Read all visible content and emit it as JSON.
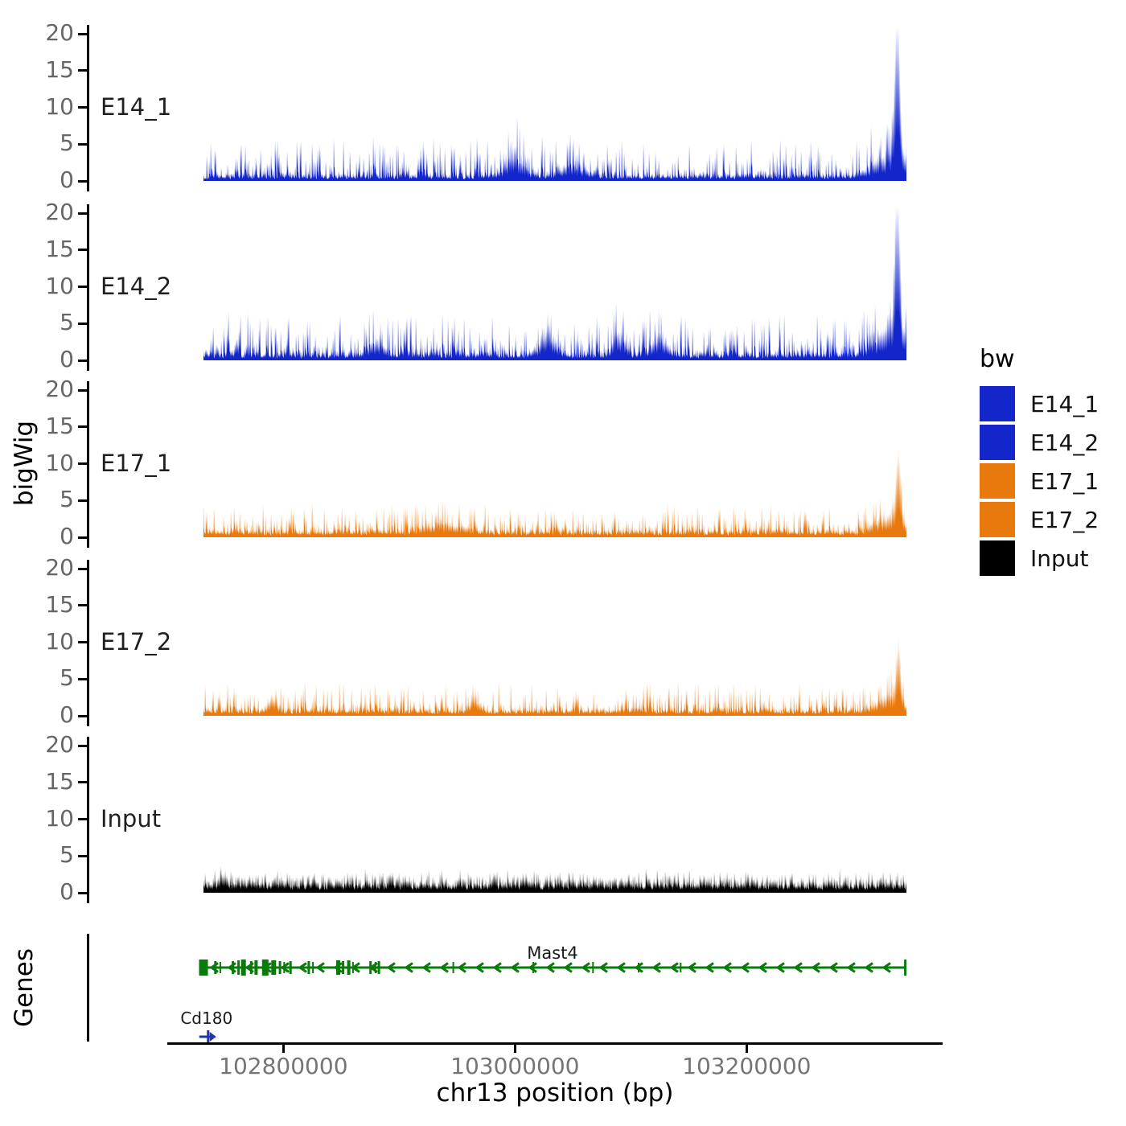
{
  "chart_data": {
    "type": "area",
    "title": "",
    "xlabel": "chr13 position (bp)",
    "ylabel": "bigWig",
    "x_domain_bp": [
      102731000,
      103338000
    ],
    "x_ticks_bp": [
      102800000,
      103000000,
      103200000
    ],
    "x_tick_labels": [
      "102800000",
      "103000000",
      "103200000"
    ],
    "y_tick_values": [
      0,
      5,
      10,
      15,
      20
    ],
    "y_tick_labels": [
      "0",
      "5",
      "10",
      "15",
      "20"
    ],
    "ylim": [
      0,
      20
    ],
    "grid": false,
    "legend_position": "right",
    "tracks": [
      {
        "name": "E14_1",
        "color": "#1326CC",
        "noise": {
          "base": 0.8,
          "pw": 4.5,
          "amp": 5.2,
          "seed": 7
        },
        "peak": {
          "bp": 103330000,
          "height": 19.5
        },
        "bumps": [
          {
            "bp": 103000000,
            "h": 3.0,
            "w": 10
          },
          {
            "bp": 103050000,
            "h": 1.6,
            "w": 14
          },
          {
            "bp": 103320000,
            "h": 2.2,
            "w": 18
          }
        ]
      },
      {
        "name": "E14_2",
        "color": "#1326CC",
        "noise": {
          "base": 1.0,
          "pw": 4.2,
          "amp": 5.6,
          "seed": 23
        },
        "peak": {
          "bp": 103330000,
          "height": 18.8
        },
        "bumps": [
          {
            "bp": 102880000,
            "h": 1.5,
            "w": 10
          },
          {
            "bp": 103028000,
            "h": 3.6,
            "w": 8
          },
          {
            "bp": 103090000,
            "h": 3.2,
            "w": 6
          },
          {
            "bp": 103125000,
            "h": 2.6,
            "w": 8
          },
          {
            "bp": 103320000,
            "h": 2.4,
            "w": 18
          }
        ]
      },
      {
        "name": "E17_1",
        "color": "#E8790C",
        "noise": {
          "base": 0.9,
          "pw": 4.5,
          "amp": 3.6,
          "seed": 41
        },
        "peak": {
          "bp": 103331000,
          "height": 8.3
        },
        "bumps": [
          {
            "bp": 102940000,
            "h": 1.2,
            "w": 20
          },
          {
            "bp": 103320000,
            "h": 1.8,
            "w": 14
          }
        ]
      },
      {
        "name": "E17_2",
        "color": "#E8790C",
        "noise": {
          "base": 0.85,
          "pw": 4.5,
          "amp": 3.8,
          "seed": 59
        },
        "peak": {
          "bp": 103331000,
          "height": 7.0
        },
        "bumps": [
          {
            "bp": 102790000,
            "h": 2.0,
            "w": 5
          },
          {
            "bp": 102965000,
            "h": 1.5,
            "w": 6
          },
          {
            "bp": 103320000,
            "h": 1.8,
            "w": 12
          }
        ]
      },
      {
        "name": "Input",
        "color": "#000000",
        "noise": {
          "base": 1.5,
          "pw": 2.2,
          "amp": 1.6,
          "seed": 77
        },
        "peak": null,
        "bumps": [
          {
            "bp": 102748000,
            "h": 1.2,
            "w": 5
          }
        ]
      }
    ],
    "genes": {
      "label": "Genes",
      "items": [
        {
          "name": "Mast4",
          "strand": "-",
          "color": "#0A7A0A",
          "start_bp": 102731000,
          "end_bp": 103337000,
          "exon_fracs": [
            {
              "f": 0.0,
              "w": 11,
              "h": 20
            },
            {
              "f": 0.017,
              "w": 3,
              "h": 16
            },
            {
              "f": 0.024,
              "w": 2,
              "h": 14
            },
            {
              "f": 0.042,
              "w": 3,
              "h": 16
            },
            {
              "f": 0.05,
              "w": 3,
              "h": 18
            },
            {
              "f": 0.057,
              "w": 6,
              "h": 20
            },
            {
              "f": 0.068,
              "w": 3,
              "h": 16
            },
            {
              "f": 0.075,
              "w": 4,
              "h": 18
            },
            {
              "f": 0.088,
              "w": 8,
              "h": 20
            },
            {
              "f": 0.1,
              "w": 6,
              "h": 18
            },
            {
              "f": 0.109,
              "w": 3,
              "h": 16
            },
            {
              "f": 0.115,
              "w": 2,
              "h": 14
            },
            {
              "f": 0.124,
              "w": 3,
              "h": 16
            },
            {
              "f": 0.15,
              "w": 3,
              "h": 16
            },
            {
              "f": 0.156,
              "w": 2,
              "h": 14
            },
            {
              "f": 0.192,
              "w": 5,
              "h": 18
            },
            {
              "f": 0.199,
              "w": 3,
              "h": 16
            },
            {
              "f": 0.207,
              "w": 4,
              "h": 18
            },
            {
              "f": 0.213,
              "w": 2,
              "h": 14
            },
            {
              "f": 0.238,
              "w": 3,
              "h": 16
            },
            {
              "f": 0.245,
              "w": 2,
              "h": 14
            },
            {
              "f": 0.25,
              "w": 3,
              "h": 16
            },
            {
              "f": 0.356,
              "w": 2,
              "h": 14
            },
            {
              "f": 0.47,
              "w": 2,
              "h": 14
            },
            {
              "f": 0.555,
              "w": 2,
              "h": 14
            },
            {
              "f": 0.62,
              "w": 2,
              "h": 12
            },
            {
              "f": 0.68,
              "w": 2,
              "h": 12
            },
            {
              "f": 1.0,
              "w": 3,
              "h": 20
            }
          ]
        },
        {
          "name": "Cd180",
          "strand": "+",
          "color": "#2433B0",
          "pos_bp": 102735000
        }
      ]
    },
    "legend": {
      "title": "bw",
      "entries": [
        {
          "label": "E14_1",
          "color": "#1326CC"
        },
        {
          "label": "E14_2",
          "color": "#1326CC"
        },
        {
          "label": "E17_1",
          "color": "#E8790C"
        },
        {
          "label": "E17_2",
          "color": "#E8790C"
        },
        {
          "label": "Input",
          "color": "#000000"
        }
      ]
    }
  }
}
